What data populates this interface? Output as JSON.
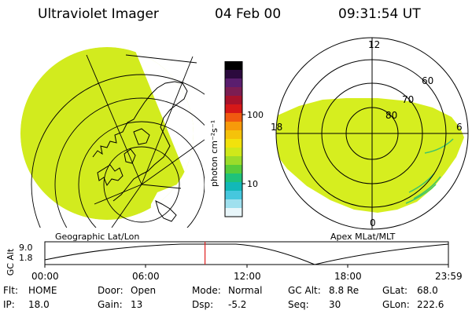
{
  "header": {
    "title": "Ultraviolet Imager",
    "date": "04 Feb 00",
    "time": "09:31:54 UT"
  },
  "colors": {
    "image_fill": "#d6ee1f",
    "coast": "#000000",
    "timeline_marker": "#e02020"
  },
  "left_panel": {
    "label": "Geographic Lat/Lon"
  },
  "right_panel": {
    "label": "Apex MLat/MLT",
    "mlt_labels": {
      "top": "12",
      "left": "18",
      "right": "6",
      "bottom": "0"
    },
    "lat_labels": [
      "60",
      "70",
      "80"
    ]
  },
  "colorbar": {
    "unit_label": "photon cm⁻²s⁻¹",
    "ticks": [
      "100",
      "10"
    ],
    "colors_top_to_bottom": [
      "#000000",
      "#2b0a3d",
      "#5a1e6e",
      "#7c1d52",
      "#a8122b",
      "#d61818",
      "#f05a10",
      "#f79a0a",
      "#f5c20a",
      "#f2e20c",
      "#cfe81a",
      "#9bdc2a",
      "#58cc3a",
      "#1fc27a",
      "#12b8b8",
      "#46c7de",
      "#9fe0ee",
      "#e8f6fa"
    ]
  },
  "timeline": {
    "y_axis_label": "GC Alt",
    "y_ticks": [
      "9.0",
      "1.8"
    ],
    "x_ticks": [
      "00:00",
      "06:00",
      "12:00",
      "18:00",
      "23:59"
    ],
    "marker_time": "09:31"
  },
  "info": {
    "flt_label": "Flt:",
    "flt_value": "HOME",
    "ip_label": "IP:",
    "ip_value": "18.0",
    "door_label": "Door:",
    "door_value": "Open",
    "gain_label": "Gain:",
    "gain_value": "13",
    "mode_label": "Mode:",
    "mode_value": "Normal",
    "dsp_label": "Dsp:",
    "dsp_value": "-5.2",
    "gcalt_label": "GC Alt:",
    "gcalt_value": "8.8 Re",
    "seq_label": "Seq:",
    "seq_value": "30",
    "glat_label": "GLat:",
    "glat_value": "68.0",
    "glon_label": "GLon:",
    "glon_value": "222.6"
  }
}
